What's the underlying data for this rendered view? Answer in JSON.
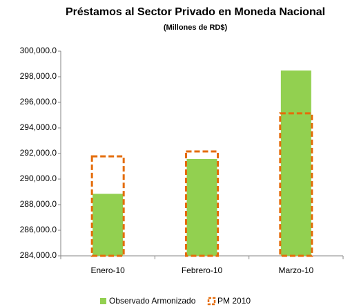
{
  "chart_data": {
    "type": "bar",
    "title": "Préstamos al Sector Privado en Moneda Nacional",
    "subtitle": "(Millones de RD$)",
    "categories": [
      "Enero-10",
      "Febrero-10",
      "Marzo-10"
    ],
    "series": [
      {
        "name": "Observado Armonizado",
        "color": "#92d050",
        "values": [
          288850,
          291570,
          298490
        ]
      },
      {
        "name": "PM 2010",
        "color": "#e46c0a",
        "values": [
          291780,
          292160,
          295140
        ]
      }
    ],
    "ylim": [
      284000,
      300000
    ],
    "yticks": [
      {
        "value": 284000,
        "label": "284,000.0"
      },
      {
        "value": 286000,
        "label": "286,000.0"
      },
      {
        "value": 288000,
        "label": "288,000.0"
      },
      {
        "value": 290000,
        "label": "290,000.0"
      },
      {
        "value": 292000,
        "label": "292,000.0"
      },
      {
        "value": 294000,
        "label": "294,000.0"
      },
      {
        "value": 296000,
        "label": "296,000.0"
      },
      {
        "value": 298000,
        "label": "298,000.0"
      },
      {
        "value": 300000,
        "label": "300,000.0"
      }
    ],
    "grid": false
  }
}
